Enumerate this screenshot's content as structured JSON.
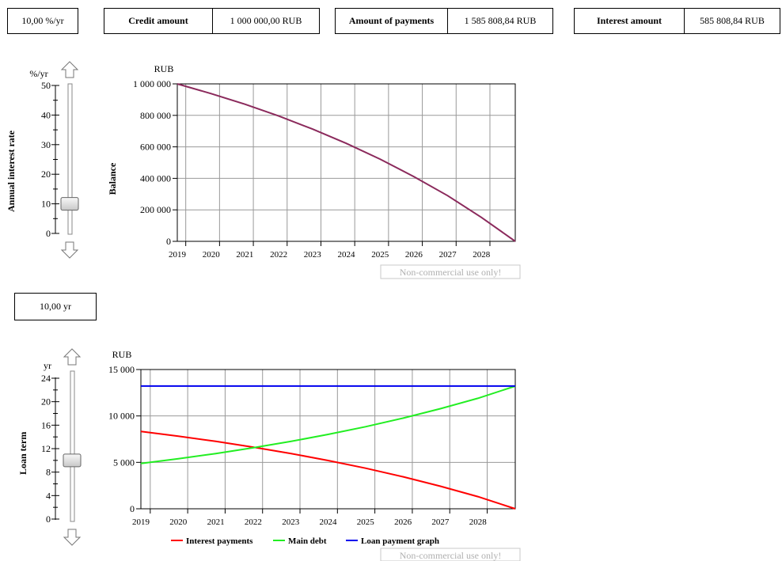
{
  "header": {
    "rate_value": "10,00 %/yr",
    "credit_label": "Credit amount",
    "credit_value": "1 000 000,00 RUB",
    "payments_label": "Amount of payments",
    "payments_value": "1 585 808,84 RUB",
    "interest_label": "Interest amount",
    "interest_value": "585 808,84 RUB"
  },
  "rate_slider": {
    "label": "Annual interest rate",
    "unit": "%/yr",
    "ticks": [
      "0",
      "10",
      "20",
      "30",
      "40",
      "50"
    ],
    "min": 0,
    "max": 50,
    "value": 10
  },
  "term_box": {
    "value": "10,00 yr"
  },
  "term_slider": {
    "label": "Loan term",
    "unit": "yr",
    "ticks": [
      "0",
      "4",
      "8",
      "12",
      "16",
      "20",
      "24"
    ],
    "min": 0,
    "max": 24,
    "value": 10
  },
  "watermark": "Non-commercial use only!",
  "colors": {
    "balance": "#8b2a5c",
    "interest": "#ff0000",
    "main": "#22ee22",
    "payment": "#0000ee",
    "grid": "#999999"
  },
  "chart_data": [
    {
      "type": "line",
      "ylabel": "Balance",
      "unit": "RUB",
      "x_tick_labels": [
        "2019",
        "2020",
        "2021",
        "2022",
        "2023",
        "2024",
        "2025",
        "2026",
        "2027",
        "2028"
      ],
      "xlim": [
        2018.75,
        2028.75
      ],
      "ylim": [
        0,
        1000000
      ],
      "y_tick_labels": [
        "0",
        "200 000",
        "400 000",
        "600 000",
        "800 000",
        "1 000 000"
      ],
      "grid": true,
      "series": [
        {
          "x": [
            2018.75,
            2019.75,
            2020.75,
            2021.75,
            2022.75,
            2023.75,
            2024.75,
            2025.75,
            2026.75,
            2027.75,
            2028.75
          ],
          "values": [
            1000000,
            938000,
            871000,
            796000,
            713000,
            622000,
            522000,
            411000,
            290000,
            152000,
            0
          ]
        }
      ]
    },
    {
      "type": "line",
      "unit": "RUB",
      "x_tick_labels": [
        "2019",
        "2020",
        "2021",
        "2022",
        "2023",
        "2024",
        "2025",
        "2026",
        "2027",
        "2028"
      ],
      "xlim": [
        2018.75,
        2028.75
      ],
      "ylim": [
        0,
        15000
      ],
      "y_tick_labels": [
        "0",
        "5 000",
        "10 000",
        "15 000"
      ],
      "grid": true,
      "legend_position": "bottom",
      "series": [
        {
          "name": "Interest payments",
          "x": [
            2018.75,
            2019.75,
            2020.75,
            2021.75,
            2022.75,
            2023.75,
            2024.75,
            2025.75,
            2026.75,
            2027.75,
            2028.75
          ],
          "values": [
            8330,
            7820,
            7260,
            6640,
            5960,
            5200,
            4370,
            3450,
            2430,
            1310,
            0
          ]
        },
        {
          "name": "Main debt",
          "x": [
            2018.75,
            2019.75,
            2020.75,
            2021.75,
            2022.75,
            2023.75,
            2024.75,
            2025.75,
            2026.75,
            2027.75,
            2028.75
          ],
          "values": [
            4880,
            5390,
            5950,
            6570,
            7250,
            8010,
            8840,
            9760,
            10780,
            11900,
            13210
          ]
        },
        {
          "name": "Loan payment graph",
          "x": [
            2018.75,
            2028.75
          ],
          "values": [
            13215,
            13215
          ]
        }
      ]
    }
  ]
}
